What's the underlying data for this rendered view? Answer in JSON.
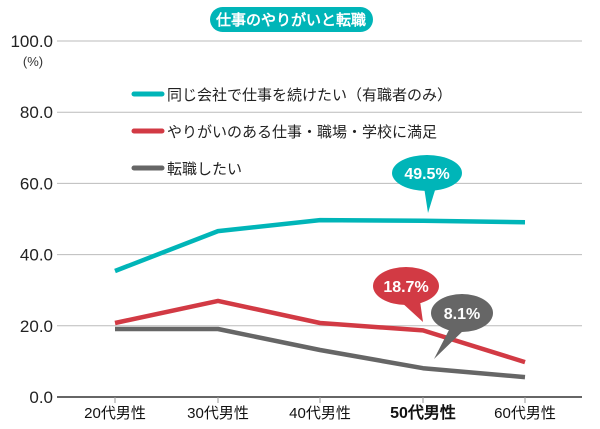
{
  "chart_data": {
    "type": "line",
    "title": "仕事のやりがいと転職",
    "ylabel": "(%)",
    "ylim": [
      0,
      100
    ],
    "yticks": [
      "0.0",
      "20.0",
      "40.0",
      "60.0",
      "80.0",
      "100.0"
    ],
    "grid": true,
    "legend_placement": "top-left",
    "categories": [
      "20代男性",
      "30代男性",
      "40代男性",
      "50代男性",
      "60代男性"
    ],
    "highlight_category": "50代男性",
    "series": [
      {
        "name": "同じ会社で仕事を続けたい（有職者のみ）",
        "color": "#00b5b8",
        "values": [
          35.4,
          46.6,
          49.7,
          49.5,
          49.1
        ],
        "callout": "49.5%"
      },
      {
        "name": "やりがいのある仕事・職場・学校に満足",
        "color": "#d23a44",
        "values": [
          20.8,
          27.0,
          20.8,
          18.7,
          9.8
        ],
        "callout": "18.7%"
      },
      {
        "name": "転職したい",
        "color": "#666666",
        "values": [
          19.1,
          19.1,
          13.2,
          8.1,
          5.6
        ],
        "callout": "8.1%"
      }
    ]
  }
}
